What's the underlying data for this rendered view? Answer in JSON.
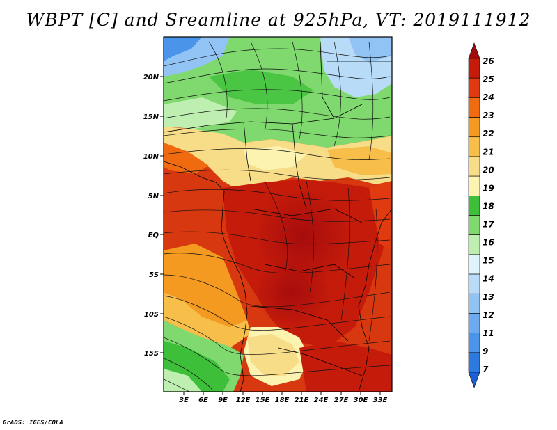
{
  "title": "WBPT [C] and Sreamline at 925hPa, VT: 2019111912",
  "footer": "GrADS: IGES/COLA",
  "map": {
    "lat_labels": [
      "20N",
      "15N",
      "10N",
      "5N",
      "EQ",
      "5S",
      "10S",
      "15S"
    ],
    "lon_labels": [
      "3E",
      "6E",
      "9E",
      "12E",
      "15E",
      "18E",
      "21E",
      "24E",
      "27E",
      "30E",
      "33E"
    ]
  },
  "colorbar": {
    "labels": [
      "7",
      "9",
      "11",
      "12",
      "13",
      "14",
      "15",
      "16",
      "17",
      "18",
      "19",
      "20",
      "21",
      "22",
      "23",
      "24",
      "25",
      "26"
    ],
    "colors": [
      "#1a5fd6",
      "#2c7ae0",
      "#4a95ea",
      "#6eaaf0",
      "#92c3f5",
      "#b8dcf8",
      "#def3fb",
      "#bfefb0",
      "#7fd96e",
      "#3ebf3a",
      "#fcf3b0",
      "#f8dd88",
      "#f7bf4a",
      "#f59a20",
      "#f06a10",
      "#e03a10",
      "#c41b0b",
      "#a30b0b"
    ]
  },
  "colors": {
    "frame": "#000000"
  }
}
